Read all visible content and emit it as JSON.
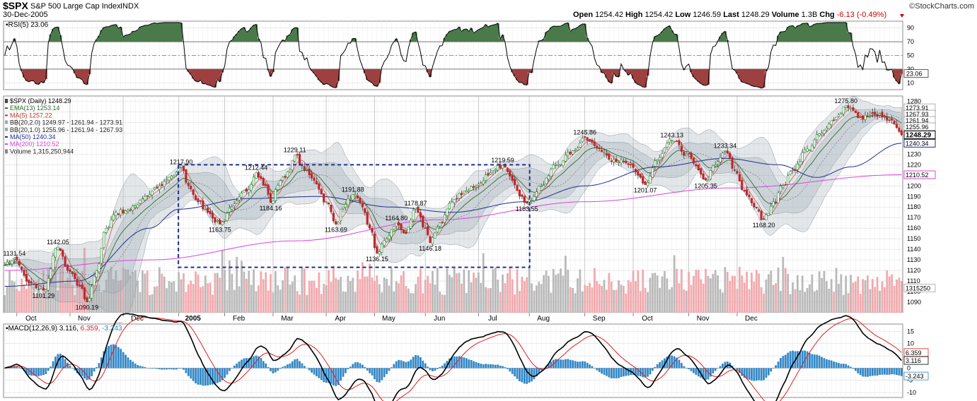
{
  "header": {
    "symbol": "$SPX",
    "name": "S&P 500 Large Cap Index",
    "exchange": "INDX",
    "date": "30-Dec-2005",
    "brand": "©StockCharts.com",
    "quote": [
      {
        "label": "Open",
        "value": "1254.42"
      },
      {
        "label": "High",
        "value": "1254.42"
      },
      {
        "label": "Low",
        "value": "1246.59"
      },
      {
        "label": "Last",
        "value": "1248.29"
      },
      {
        "label": "Volume",
        "value": "1.3B"
      },
      {
        "label": "Chg",
        "value": "-6.13 (-0.49%)"
      }
    ],
    "chg_color": "#cc0000",
    "down_arrow": "triangle-down-icon"
  },
  "colors": {
    "ema": "#2e6b2e",
    "ma5": "#c0392b",
    "ma50": "#1f2f8f",
    "ma200": "#dd44dd",
    "up": "#228822",
    "down": "#c0262b",
    "band": "#9aa8b4",
    "volume_up": "#b8b8b8",
    "volume_down": "#f1a8ac",
    "macd_hist": "#2f86c6",
    "macd_line": "#000000",
    "signal_line": "#dd2222",
    "rsi_over": "#4a7a4a",
    "rsi_under": "#9e4040",
    "box": "#1f2f8f"
  },
  "chart_data": [
    {
      "type": "line",
      "title": "RSI(5) 23.06",
      "indicator": "RSI(5)",
      "current": "23.06",
      "yticks": [
        "90",
        "70",
        "50",
        "30",
        "10"
      ],
      "ylim": [
        0,
        100
      ],
      "overbought": 70,
      "oversold": 30,
      "midline": 50
    },
    {
      "type": "candlestick",
      "title": "$SPX (Daily) 1248.29",
      "legend": [
        {
          "label": "$SPX (Daily) 1248.29",
          "swatch": "candle-icon"
        },
        {
          "label": "EMA(13) 1253.14",
          "swatch": "line-ema"
        },
        {
          "label": "MA(5) 1257.22",
          "swatch": "line-ma5"
        },
        {
          "label": "BB(20,2.0) 1249.97 - 1261.94 - 1273.91",
          "swatch": "band-icon"
        },
        {
          "label": "BB(20,1.0) 1255.96 - 1261.94 - 1267.93",
          "swatch": "band-icon"
        },
        {
          "label": "MA(50) 1240.34",
          "swatch": "line-ma50"
        },
        {
          "label": "MA(200) 1210.52",
          "swatch": "line-ma200"
        },
        {
          "label": "Volume 1,315,250,944",
          "swatch": "volume-icon"
        }
      ],
      "ylim": [
        1080,
        1285
      ],
      "yticks": [
        "1280",
        "1270",
        "1260",
        "1250",
        "1240",
        "1230",
        "1220",
        "1210",
        "1200",
        "1190",
        "1180",
        "1170",
        "1160",
        "1150",
        "1140",
        "1130",
        "1120",
        "1110",
        "1100",
        "1090"
      ],
      "months": [
        "Oct",
        "Nov",
        "Dec",
        "2005",
        "Feb",
        "Mar",
        "Apr",
        "May",
        "Jun",
        "Jul",
        "Aug",
        "Sep",
        "Oct",
        "Nov",
        "Dec"
      ],
      "month_starts": [
        5,
        27,
        49,
        72,
        91,
        111,
        133,
        153,
        174,
        196,
        217,
        240,
        260,
        283,
        303
      ],
      "total_days": 325,
      "price_path": [
        [
          0,
          1125
        ],
        [
          4,
          1131.54
        ],
        [
          10,
          1108
        ],
        [
          16,
          1101.29
        ],
        [
          22,
          1142.05
        ],
        [
          26,
          1120
        ],
        [
          31,
          1105
        ],
        [
          34,
          1090.19
        ],
        [
          38,
          1120
        ],
        [
          42,
          1160
        ],
        [
          46,
          1175
        ],
        [
          52,
          1178
        ],
        [
          58,
          1190
        ],
        [
          64,
          1200
        ],
        [
          70,
          1210
        ],
        [
          73,
          1217.9
        ],
        [
          76,
          1200
        ],
        [
          80,
          1185
        ],
        [
          84,
          1175
        ],
        [
          89,
          1163.75
        ],
        [
          94,
          1180
        ],
        [
          100,
          1195
        ],
        [
          104,
          1212.44
        ],
        [
          108,
          1200
        ],
        [
          110,
          1184.16
        ],
        [
          114,
          1205
        ],
        [
          118,
          1215
        ],
        [
          120,
          1229.11
        ],
        [
          124,
          1215
        ],
        [
          128,
          1205
        ],
        [
          133,
          1185
        ],
        [
          137,
          1163.69
        ],
        [
          140,
          1180
        ],
        [
          144,
          1191.88
        ],
        [
          148,
          1180
        ],
        [
          151,
          1160
        ],
        [
          154,
          1136.15
        ],
        [
          158,
          1150
        ],
        [
          162,
          1164.8
        ],
        [
          166,
          1155
        ],
        [
          170,
          1178.87
        ],
        [
          174,
          1160
        ],
        [
          176,
          1146.18
        ],
        [
          180,
          1165
        ],
        [
          185,
          1185
        ],
        [
          190,
          1195
        ],
        [
          195,
          1200
        ],
        [
          200,
          1210
        ],
        [
          206,
          1219.59
        ],
        [
          210,
          1205
        ],
        [
          214,
          1190
        ],
        [
          216,
          1183.55
        ],
        [
          222,
          1200
        ],
        [
          228,
          1220
        ],
        [
          234,
          1230
        ],
        [
          240,
          1245.86
        ],
        [
          246,
          1235
        ],
        [
          252,
          1225
        ],
        [
          258,
          1220
        ],
        [
          262,
          1210
        ],
        [
          265,
          1201.07
        ],
        [
          270,
          1225
        ],
        [
          276,
          1243.13
        ],
        [
          282,
          1230
        ],
        [
          287,
          1215
        ],
        [
          290,
          1205.35
        ],
        [
          294,
          1220
        ],
        [
          298,
          1233.34
        ],
        [
          302,
          1215
        ],
        [
          306,
          1195
        ],
        [
          310,
          1180
        ],
        [
          314,
          1168.2
        ],
        [
          318,
          1185
        ],
        [
          322,
          1200
        ],
        [
          326,
          1215
        ],
        [
          332,
          1235
        ],
        [
          338,
          1250
        ],
        [
          344,
          1265
        ],
        [
          348,
          1275.8
        ],
        [
          354,
          1265
        ],
        [
          360,
          1268
        ],
        [
          366,
          1262
        ],
        [
          371,
          1248.29
        ]
      ],
      "annotations": [
        {
          "x": 4,
          "price": 1131.54,
          "label": "1131.54",
          "pos": "above"
        },
        {
          "x": 16,
          "price": 1101.29,
          "label": "1101.29",
          "pos": "below"
        },
        {
          "x": 22,
          "price": 1142.05,
          "label": "1142.05",
          "pos": "above"
        },
        {
          "x": 34,
          "price": 1090.19,
          "label": "1090.19",
          "pos": "below"
        },
        {
          "x": 73,
          "price": 1217.9,
          "label": "1217.90",
          "pos": "above"
        },
        {
          "x": 89,
          "price": 1163.75,
          "label": "1163.75",
          "pos": "below"
        },
        {
          "x": 104,
          "price": 1212.44,
          "label": "1212.44",
          "pos": "above"
        },
        {
          "x": 110,
          "price": 1184.16,
          "label": "1184.16",
          "pos": "below"
        },
        {
          "x": 120,
          "price": 1229.11,
          "label": "1229.11",
          "pos": "above"
        },
        {
          "x": 137,
          "price": 1163.69,
          "label": "1163.69",
          "pos": "below"
        },
        {
          "x": 144,
          "price": 1191.88,
          "label": "1191.88",
          "pos": "above"
        },
        {
          "x": 154,
          "price": 1136.15,
          "label": "1136.15",
          "pos": "below"
        },
        {
          "x": 162,
          "price": 1164.8,
          "label": "1164.80",
          "pos": "above"
        },
        {
          "x": 170,
          "price": 1178.87,
          "label": "1178.87",
          "pos": "above"
        },
        {
          "x": 176,
          "price": 1146.18,
          "label": "1146.18",
          "pos": "below"
        },
        {
          "x": 206,
          "price": 1219.59,
          "label": "1219.59",
          "pos": "above"
        },
        {
          "x": 216,
          "price": 1183.55,
          "label": "1183.55",
          "pos": "below"
        },
        {
          "x": 240,
          "price": 1245.86,
          "label": "1245.86",
          "pos": "above"
        },
        {
          "x": 265,
          "price": 1201.07,
          "label": "1201.07",
          "pos": "below"
        },
        {
          "x": 276,
          "price": 1243.13,
          "label": "1243.13",
          "pos": "above"
        },
        {
          "x": 290,
          "price": 1205.35,
          "label": "1205.35",
          "pos": "below"
        },
        {
          "x": 298,
          "price": 1233.34,
          "label": "1233.34",
          "pos": "above"
        },
        {
          "x": 314,
          "price": 1168.2,
          "label": "1168.20",
          "pos": "below"
        },
        {
          "x": 348,
          "price": 1275.8,
          "label": "1275.80",
          "pos": "above"
        }
      ],
      "consolidation_box": {
        "x_from": 73,
        "x_to": 216,
        "price_top": 1220,
        "price_bottom": 1123
      },
      "ma50_path": [
        [
          0,
          1105
        ],
        [
          30,
          1110
        ],
        [
          60,
          1160
        ],
        [
          72,
          1178
        ],
        [
          100,
          1188
        ],
        [
          130,
          1190
        ],
        [
          160,
          1180
        ],
        [
          185,
          1175
        ],
        [
          215,
          1185
        ],
        [
          240,
          1200
        ],
        [
          270,
          1218
        ],
        [
          298,
          1226
        ],
        [
          320,
          1220
        ],
        [
          336,
          1208
        ],
        [
          350,
          1218
        ],
        [
          371,
          1240.34
        ]
      ],
      "ma200_path": [
        [
          0,
          1120
        ],
        [
          60,
          1130
        ],
        [
          120,
          1148
        ],
        [
          180,
          1168
        ],
        [
          240,
          1185
        ],
        [
          300,
          1198
        ],
        [
          371,
          1210.52
        ]
      ],
      "right_labels": [
        {
          "price": 1273.91,
          "label": "1273.91",
          "style": "plain"
        },
        {
          "price": 1267.93,
          "label": "1267.93",
          "style": "plain"
        },
        {
          "price": 1261.94,
          "label": "1261.94",
          "style": "plain"
        },
        {
          "price": 1255.96,
          "label": "1255.96",
          "style": "plain"
        },
        {
          "price": 1248.29,
          "label": "1248.29",
          "style": "bold"
        },
        {
          "price": 1240.34,
          "label": "1240.34",
          "style": "ma50"
        },
        {
          "price": 1210.52,
          "label": "1210.52",
          "style": "ma200"
        }
      ],
      "volume_label": "1315250"
    },
    {
      "type": "line",
      "title": "MACD(12,26,9)",
      "legend": [
        {
          "label": "MACD(12,26,9) 3.116,",
          "color": "#000000"
        },
        {
          "label": "6.359,",
          "color": "#dd2222"
        },
        {
          "label": "-3.243",
          "color": "#2f86c6"
        }
      ],
      "ylim": [
        -12,
        18
      ],
      "yticks": [
        "15",
        "10",
        "5",
        "0",
        "-5",
        "-10"
      ],
      "right_labels": [
        {
          "value": 6.359,
          "label": "6.359",
          "color": "#dd2222"
        },
        {
          "value": 3.116,
          "label": "3.116",
          "color": "#000000"
        },
        {
          "value": -3.243,
          "label": "-3.243",
          "color": "#2f86c6"
        }
      ]
    }
  ]
}
